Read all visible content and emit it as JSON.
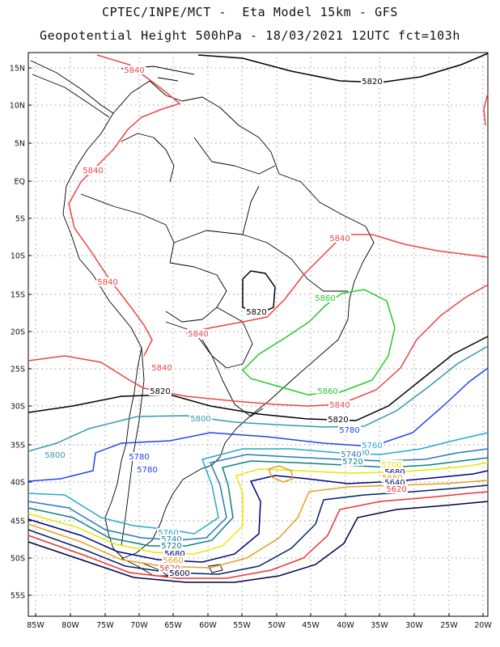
{
  "header": {
    "line1": "CPTEC/INPE/MCT -  Eta Model 15km - GFS",
    "line2": "Geopotential Height 500hPa - 18/03/2021 12UTC fct=103h"
  },
  "map": {
    "lat_labels": [
      "15N",
      "10N",
      "5N",
      "EQ",
      "5S",
      "10S",
      "15S",
      "20S",
      "25S",
      "30S",
      "35S",
      "40S",
      "45S",
      "50S",
      "55S"
    ],
    "lon_labels": [
      "85W",
      "80W",
      "75W",
      "70W",
      "65W",
      "60W",
      "55W",
      "50W",
      "45W",
      "40W",
      "35W",
      "30W",
      "25W",
      "20W"
    ],
    "extent": {
      "lon": [
        -86,
        -20
      ],
      "lat": [
        -58,
        16
      ]
    },
    "gridlines": "dotted"
  },
  "contours": [
    {
      "value": 5860,
      "color": "#22cc22"
    },
    {
      "value": 5840,
      "color": "#ee4444"
    },
    {
      "value": 5820,
      "color": "#000000"
    },
    {
      "value": 5800,
      "color": "#3399aa"
    },
    {
      "value": 5780,
      "color": "#2244ee"
    },
    {
      "value": 5760,
      "color": "#22aacc"
    },
    {
      "value": 5740,
      "color": "#2a7ab8"
    },
    {
      "value": 5720,
      "color": "#0e8080"
    },
    {
      "value": 5700,
      "color": "#e8e800"
    },
    {
      "value": 5680,
      "color": "#000080"
    },
    {
      "value": 5660,
      "color": "#e8a020"
    },
    {
      "value": 5640,
      "color": "#002266"
    },
    {
      "value": 5620,
      "color": "#ee3333"
    },
    {
      "value": 5600,
      "color": "#000044"
    }
  ],
  "contour_labels": [
    {
      "text": "5840",
      "color": "#ee4444"
    },
    {
      "text": "5820",
      "color": "#000000"
    },
    {
      "text": "5840",
      "color": "#ee4444"
    },
    {
      "text": "5840",
      "color": "#ee4444"
    },
    {
      "text": "5840",
      "color": "#ee4444"
    },
    {
      "text": "5860",
      "color": "#22cc22"
    },
    {
      "text": "5820",
      "color": "#000000"
    },
    {
      "text": "5840",
      "color": "#ee4444"
    },
    {
      "text": "5840",
      "color": "#ee4444"
    },
    {
      "text": "5860",
      "color": "#22cc22"
    },
    {
      "text": "5820",
      "color": "#000000"
    },
    {
      "text": "5840",
      "color": "#ee4444"
    },
    {
      "text": "5800",
      "color": "#3399aa"
    },
    {
      "text": "5820",
      "color": "#000000"
    },
    {
      "text": "5800",
      "color": "#3399aa"
    },
    {
      "text": "5780",
      "color": "#2244ee"
    },
    {
      "text": "5780",
      "color": "#2244ee"
    },
    {
      "text": "5760",
      "color": "#22aacc"
    },
    {
      "text": "5800",
      "color": "#3399aa"
    },
    {
      "text": "5740",
      "color": "#2a7ab8"
    },
    {
      "text": "5720",
      "color": "#0e8080"
    },
    {
      "text": "5780",
      "color": "#2244ee"
    },
    {
      "text": "5700",
      "color": "#e8e800"
    },
    {
      "text": "5680",
      "color": "#000080"
    },
    {
      "text": "5660",
      "color": "#e8a020"
    },
    {
      "text": "5640",
      "color": "#002266"
    },
    {
      "text": "5620",
      "color": "#ee3333"
    },
    {
      "text": "5760",
      "color": "#22aacc"
    },
    {
      "text": "5740",
      "color": "#2a7ab8"
    },
    {
      "text": "5720",
      "color": "#0e8080"
    },
    {
      "text": "5680",
      "color": "#000080"
    },
    {
      "text": "5660",
      "color": "#e8a020"
    },
    {
      "text": "5620",
      "color": "#ee3333"
    },
    {
      "text": "5600",
      "color": "#000044"
    }
  ]
}
